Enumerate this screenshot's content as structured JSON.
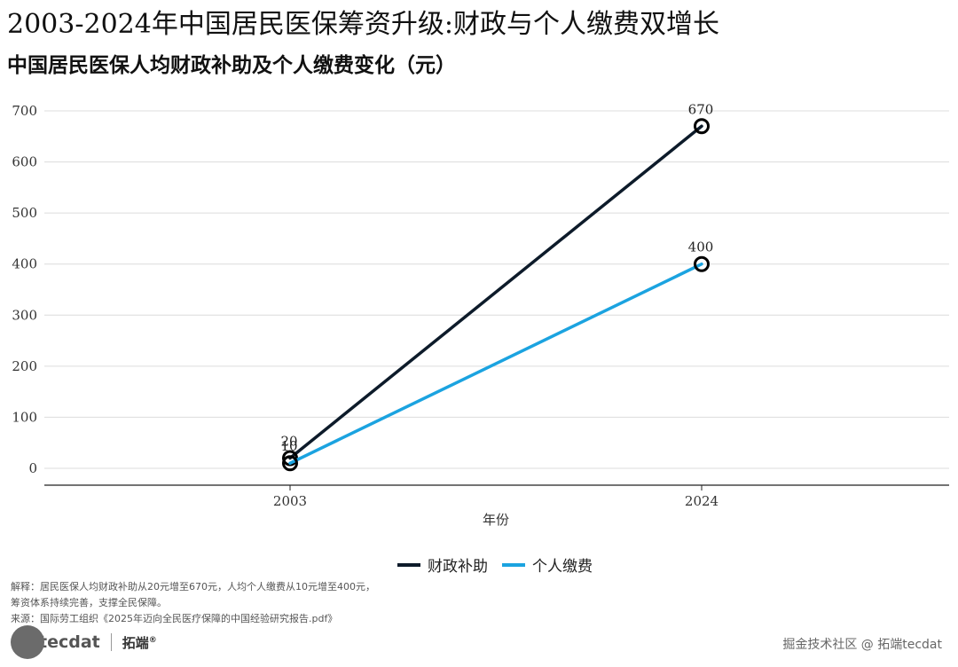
{
  "title": "2003-2024年中国居民医保筹资升级:财政与个人缴费双增长",
  "subtitle": "中国居民医保人均财政补助及个人缴费变化（元）",
  "chart_data": {
    "type": "line",
    "title": "中国居民医保人均财政补助及个人缴费变化（元）",
    "xlabel": "年份",
    "ylabel": "",
    "categories": [
      "2003",
      "2024"
    ],
    "yticks": [
      0,
      100,
      200,
      300,
      400,
      500,
      600,
      700
    ],
    "ylim": [
      -35,
      740
    ],
    "grid": true,
    "legend": "bottom",
    "series": [
      {
        "name": "财政补助",
        "values": [
          20,
          670
        ],
        "labels": [
          "20",
          "670"
        ],
        "color": "#0d1b2a"
      },
      {
        "name": "个人缴费",
        "values": [
          10,
          400
        ],
        "labels": [
          "10",
          "400"
        ],
        "color": "#1ba3e0"
      }
    ]
  },
  "notes": {
    "line1": "解释：居民医保人均财政补助从20元增至670元，人均个人缴费从10元增至400元，",
    "line2": "筹资体系持续完善，支撑全民保障。",
    "line3": "来源：国际劳工组织《2025年迈向全民医疗保障的中国经验研究报告.pdf》"
  },
  "branding": {
    "logo_text": "tecdat",
    "logo_cn": "拓端",
    "registered": "®",
    "watermark": "掘金技术社区 @ 拓端tecdat"
  }
}
